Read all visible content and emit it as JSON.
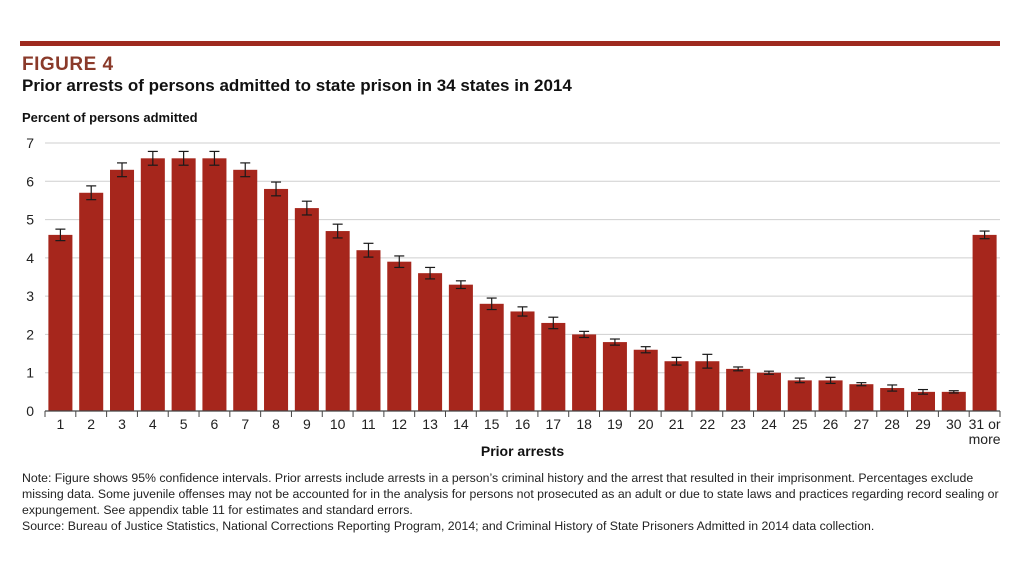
{
  "figure_label": "FIGURE 4",
  "title": "Prior arrests of persons admitted to state prison in 34 states in 2014",
  "note": "Note: Figure shows 95% confidence intervals. Prior arrests include arrests in a person’s criminal history and the arrest that resulted in their imprisonment. Percentages exclude missing data. Some juvenile offenses may not be accounted for in the analysis for persons not prosecuted as an adult or due to state laws and practices regarding record sealing or expungement. See appendix table 11 for estimates and standard errors.",
  "source": "Source: Bureau of Justice Statistics, National Corrections Reporting Program, 2014; and Criminal History of State Prisoners Admitted in 2014 data collection.",
  "colors": {
    "bar": "#a6261c",
    "accent_rule": "#9e2a1f",
    "figure_label": "#8a3a2a",
    "grid": "#cfcfcf"
  },
  "chart_data": {
    "type": "bar",
    "title": "Prior arrests of persons admitted to state prison in 34 states in 2014",
    "xlabel": "Prior arrests",
    "ylabel": "Percent of persons admitted",
    "ylim": [
      0,
      7
    ],
    "yticks": [
      0,
      1,
      2,
      3,
      4,
      5,
      6,
      7
    ],
    "grid": true,
    "categories": [
      "1",
      "2",
      "3",
      "4",
      "5",
      "6",
      "7",
      "8",
      "9",
      "10",
      "11",
      "12",
      "13",
      "14",
      "15",
      "16",
      "17",
      "18",
      "19",
      "20",
      "21",
      "22",
      "23",
      "24",
      "25",
      "26",
      "27",
      "28",
      "29",
      "30",
      "31 or more"
    ],
    "values": [
      4.6,
      5.7,
      6.3,
      6.6,
      6.6,
      6.6,
      6.3,
      5.8,
      5.3,
      4.7,
      4.2,
      3.9,
      3.6,
      3.3,
      2.8,
      2.6,
      2.3,
      2.0,
      1.8,
      1.6,
      1.3,
      1.3,
      1.1,
      1.0,
      0.8,
      0.8,
      0.7,
      0.6,
      0.5,
      0.5,
      4.6
    ],
    "error_margin": [
      0.15,
      0.18,
      0.18,
      0.18,
      0.18,
      0.18,
      0.18,
      0.18,
      0.18,
      0.18,
      0.18,
      0.15,
      0.15,
      0.1,
      0.15,
      0.12,
      0.15,
      0.08,
      0.08,
      0.08,
      0.1,
      0.18,
      0.05,
      0.04,
      0.06,
      0.08,
      0.04,
      0.08,
      0.06,
      0.03,
      0.1
    ]
  }
}
